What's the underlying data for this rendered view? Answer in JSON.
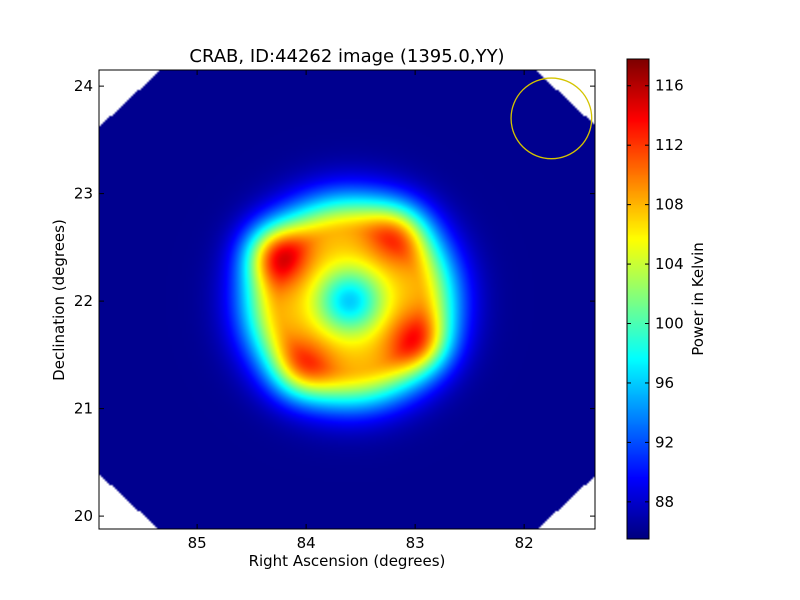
{
  "chart_data": {
    "type": "heatmap",
    "title": "CRAB, ID:44262 image (1395.0,YY)",
    "xlabel": "Right Ascension (degrees)",
    "ylabel": "Declination (degrees)",
    "x_axis_inverted": true,
    "xlim": [
      85.9,
      81.35
    ],
    "ylim": [
      19.88,
      24.15
    ],
    "x_ticks": [
      85,
      84,
      83,
      82
    ],
    "x_tick_labels": [
      "85",
      "84",
      "83",
      "82"
    ],
    "y_ticks": [
      20,
      21,
      22,
      23,
      24
    ],
    "y_tick_labels": [
      "20",
      "21",
      "22",
      "23",
      "24"
    ],
    "colormap": "jet",
    "colorbar": {
      "label": "Power in Kelvin",
      "range": [
        85.5,
        117.8
      ],
      "ticks": [
        88,
        92,
        96,
        100,
        104,
        108,
        112,
        116
      ],
      "tick_labels": [
        "88",
        "92",
        "96",
        "100",
        "104",
        "108",
        "112",
        "116"
      ]
    },
    "peaks": [
      {
        "ra": 84.3,
        "dec": 22.45,
        "value": 117
      },
      {
        "ra": 83.15,
        "dec": 22.65,
        "value": 113
      },
      {
        "ra": 82.95,
        "dec": 21.6,
        "value": 114
      },
      {
        "ra": 84.05,
        "dec": 21.35,
        "value": 113
      }
    ],
    "center": {
      "ra": 83.6,
      "dec": 22.0,
      "value": 96
    },
    "background_value": 86,
    "beam_circle": {
      "ra": 81.75,
      "dec": 23.7,
      "radius_deg": 0.37,
      "color": "#d4c400"
    }
  }
}
